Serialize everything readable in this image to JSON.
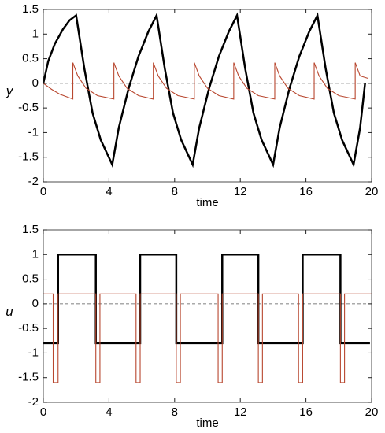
{
  "chart_data": [
    {
      "type": "line",
      "xlabel": "time",
      "ylabel": "y",
      "xlim": [
        0,
        20
      ],
      "ylim": [
        -2,
        1.5
      ],
      "xticks": [
        0,
        4,
        8,
        12,
        16,
        20
      ],
      "yticks": [
        -2,
        -1.5,
        -1,
        -0.5,
        0,
        0.5,
        1,
        1.5
      ],
      "series": [
        {
          "color": "#000000",
          "x": [
            0,
            0.3,
            0.7,
            1.2,
            1.6,
            2.0,
            2.5,
            3.0,
            3.5,
            4.2,
            4.6,
            5.2,
            5.8,
            6.4,
            6.9,
            7.4,
            7.9,
            8.4,
            9.1,
            9.5,
            10.1,
            10.7,
            11.3,
            11.8,
            12.3,
            12.8,
            13.3,
            14.0,
            14.4,
            15.0,
            15.6,
            16.2,
            16.7,
            17.2,
            17.7,
            18.2,
            18.9,
            19.3,
            19.6
          ],
          "values": [
            0,
            0.45,
            0.8,
            1.1,
            1.28,
            1.38,
            0.3,
            -0.6,
            -1.15,
            -1.65,
            -0.9,
            -0.1,
            0.55,
            1.05,
            1.38,
            0.3,
            -0.6,
            -1.15,
            -1.65,
            -0.9,
            -0.1,
            0.55,
            1.05,
            1.38,
            0.3,
            -0.6,
            -1.15,
            -1.65,
            -0.9,
            -0.1,
            0.55,
            1.05,
            1.38,
            0.3,
            -0.6,
            -1.15,
            -1.65,
            -0.9,
            0
          ]
        },
        {
          "color": "#b8472f",
          "x": [
            0,
            0.5,
            1.0,
            1.8,
            1.8,
            2.1,
            2.6,
            3.3,
            4.3,
            4.3,
            4.6,
            5.1,
            5.8,
            6.7,
            6.7,
            7.0,
            7.5,
            8.2,
            9.2,
            9.2,
            9.5,
            10.0,
            10.7,
            11.6,
            11.6,
            11.9,
            12.4,
            13.1,
            14.1,
            14.1,
            14.4,
            14.9,
            15.6,
            16.5,
            16.5,
            16.8,
            17.3,
            18.0,
            19.0,
            19.0,
            19.3,
            19.8
          ],
          "values": [
            0,
            -0.12,
            -0.22,
            -0.32,
            0.42,
            0.15,
            -0.1,
            -0.25,
            -0.32,
            0.42,
            0.15,
            -0.1,
            -0.25,
            -0.32,
            0.42,
            0.15,
            -0.1,
            -0.25,
            -0.32,
            0.42,
            0.15,
            -0.1,
            -0.25,
            -0.32,
            0.42,
            0.15,
            -0.1,
            -0.25,
            -0.32,
            0.42,
            0.15,
            -0.1,
            -0.25,
            -0.32,
            0.42,
            0.15,
            -0.1,
            -0.25,
            -0.32,
            0.42,
            0.15,
            0.1
          ]
        }
      ]
    },
    {
      "type": "line",
      "xlabel": "time",
      "ylabel": "u",
      "xlim": [
        0,
        20
      ],
      "ylim": [
        -2,
        1.5
      ],
      "xticks": [
        0,
        4,
        8,
        12,
        16,
        20
      ],
      "yticks": [
        -2,
        -1.5,
        -1,
        -0.5,
        0,
        0.5,
        1,
        1.5
      ],
      "series": [
        {
          "color": "#000000",
          "x": [
            0,
            0.9,
            0.9,
            3.2,
            3.2,
            5.9,
            5.9,
            8.1,
            8.1,
            10.9,
            10.9,
            13.1,
            13.1,
            15.8,
            15.8,
            18.1,
            18.1,
            19.9
          ],
          "values": [
            -0.8,
            -0.8,
            1,
            1,
            -0.8,
            -0.8,
            1,
            1,
            -0.8,
            -0.8,
            1,
            1,
            -0.8,
            -0.8,
            1,
            1,
            -0.8,
            -0.8
          ]
        },
        {
          "color": "#b8472f",
          "x": [
            0,
            0.6,
            0.6,
            0.9,
            0.9,
            3.2,
            3.2,
            3.45,
            3.45,
            5.65,
            5.65,
            5.9,
            5.9,
            8.1,
            8.1,
            8.35,
            8.35,
            10.65,
            10.65,
            10.9,
            10.9,
            13.1,
            13.1,
            13.35,
            13.35,
            15.55,
            15.55,
            15.8,
            15.8,
            18.1,
            18.1,
            18.35,
            18.35,
            20
          ],
          "values": [
            0.2,
            0.2,
            -1.6,
            -1.6,
            0.2,
            0.2,
            -1.6,
            -1.6,
            0.2,
            0.2,
            -1.6,
            -1.6,
            0.2,
            0.2,
            -1.6,
            -1.6,
            0.2,
            0.2,
            -1.6,
            -1.6,
            0.2,
            0.2,
            -1.6,
            -1.6,
            0.2,
            0.2,
            -1.6,
            -1.6,
            0.2,
            0.2,
            -1.6,
            -1.6,
            0.2,
            0.2
          ]
        }
      ]
    }
  ]
}
